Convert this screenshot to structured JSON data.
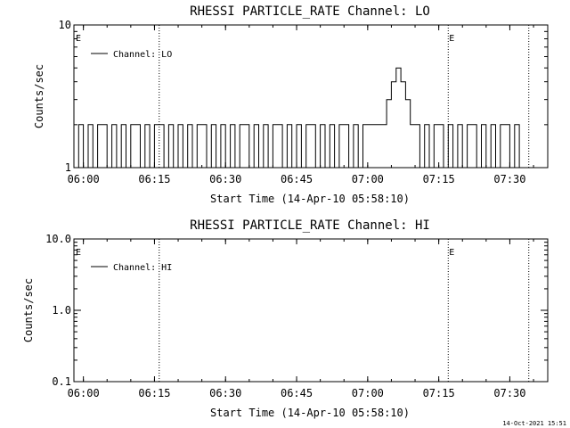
{
  "timestamp": "14-Oct-2021 15:51",
  "chart_data": [
    {
      "type": "line",
      "title": "RHESSI PARTICLE_RATE Channel: LO",
      "xlabel": "Start Time (14-Apr-10 05:58:10)",
      "ylabel": "Counts/sec",
      "x_ticks": [
        "06:00",
        "06:15",
        "06:30",
        "06:45",
        "07:00",
        "07:15",
        "07:30"
      ],
      "y_scale": "log",
      "y_ticks": [
        "1",
        "10"
      ],
      "ylim": [
        1,
        10
      ],
      "legend": "Channel: LO",
      "legend_position": "top-left",
      "event_marker_label": "E",
      "event_lines": [
        "06:16",
        "07:17",
        "07:34"
      ],
      "series": [
        {
          "name": "Channel: LO",
          "x": [
            "05:58",
            "05:59",
            "06:00",
            "06:01",
            "06:02",
            "06:03",
            "06:04",
            "06:05",
            "06:06",
            "06:07",
            "06:08",
            "06:09",
            "06:10",
            "06:11",
            "06:12",
            "06:13",
            "06:14",
            "06:15",
            "06:16",
            "06:17",
            "06:18",
            "06:19",
            "06:20",
            "06:21",
            "06:22",
            "06:23",
            "06:24",
            "06:25",
            "06:26",
            "06:27",
            "06:28",
            "06:29",
            "06:30",
            "06:31",
            "06:32",
            "06:33",
            "06:34",
            "06:35",
            "06:36",
            "06:37",
            "06:38",
            "06:39",
            "06:40",
            "06:41",
            "06:42",
            "06:43",
            "06:44",
            "06:45",
            "06:46",
            "06:47",
            "06:48",
            "06:49",
            "06:50",
            "06:51",
            "06:52",
            "06:53",
            "06:54",
            "06:55",
            "06:56",
            "06:57",
            "06:58",
            "06:59",
            "07:00",
            "07:01",
            "07:02",
            "07:03",
            "07:04",
            "07:05",
            "07:06",
            "07:07",
            "07:08",
            "07:09",
            "07:10",
            "07:11",
            "07:12",
            "07:13",
            "07:14",
            "07:15",
            "07:16",
            "07:17",
            "07:18",
            "07:19",
            "07:20",
            "07:21",
            "07:22",
            "07:23",
            "07:24",
            "07:25",
            "07:26",
            "07:27",
            "07:28",
            "07:29",
            "07:30",
            "07:31",
            "07:32",
            "07:33",
            "07:34"
          ],
          "values": [
            1,
            2,
            1,
            2,
            1,
            2,
            2,
            1,
            2,
            1,
            2,
            1,
            2,
            2,
            1,
            2,
            1,
            2,
            2,
            1,
            2,
            1,
            2,
            1,
            2,
            1,
            2,
            2,
            1,
            2,
            1,
            2,
            1,
            2,
            1,
            2,
            2,
            1,
            2,
            1,
            2,
            1,
            2,
            2,
            1,
            2,
            1,
            2,
            1,
            2,
            2,
            1,
            2,
            1,
            2,
            1,
            2,
            2,
            1,
            2,
            1,
            2,
            2,
            2,
            2,
            2,
            3,
            4,
            5,
            4,
            3,
            2,
            2,
            1,
            2,
            1,
            2,
            2,
            1,
            2,
            1,
            2,
            1,
            2,
            2,
            1,
            2,
            1,
            2,
            1,
            2,
            2,
            1,
            2,
            1,
            1,
            1
          ]
        }
      ]
    },
    {
      "type": "line",
      "title": "RHESSI PARTICLE_RATE Channel: HI",
      "xlabel": "Start Time (14-Apr-10 05:58:10)",
      "ylabel": "Counts/sec",
      "x_ticks": [
        "06:00",
        "06:15",
        "06:30",
        "06:45",
        "07:00",
        "07:15",
        "07:30"
      ],
      "y_scale": "log",
      "y_ticks": [
        "0.1",
        "1.0",
        "10.0"
      ],
      "ylim": [
        0.1,
        10
      ],
      "legend": "Channel: HI",
      "legend_position": "top-left",
      "event_marker_label": "E",
      "event_lines": [
        "06:16",
        "07:17",
        "07:34"
      ],
      "series": [
        {
          "name": "Channel: HI",
          "x": [],
          "values": []
        }
      ]
    }
  ]
}
